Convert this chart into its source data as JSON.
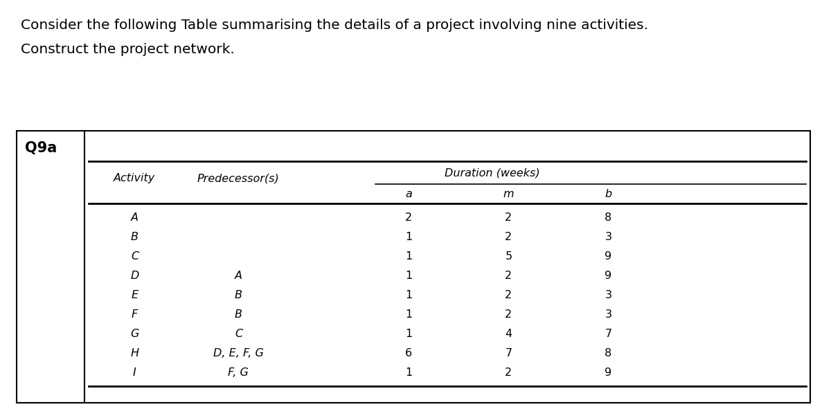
{
  "title_line1": "Consider the following Table summarising the details of a project involving nine activities.",
  "title_line2": "Construct the project network.",
  "label": "Q9a",
  "header_col1": "Activity",
  "header_col2": "Predecessor(s)",
  "header_col3": "Duration (weeks)",
  "subheader_a": "a",
  "subheader_m": "m",
  "subheader_b": "b",
  "activities": [
    "A",
    "B",
    "C",
    "D",
    "E",
    "F",
    "G",
    "H",
    "I"
  ],
  "predecessors": [
    "",
    "",
    "",
    "A",
    "B",
    "B",
    "C",
    "D, E, F, G",
    "F, G"
  ],
  "a_values": [
    2,
    1,
    1,
    1,
    1,
    1,
    1,
    6,
    1
  ],
  "m_values": [
    2,
    2,
    5,
    2,
    2,
    2,
    4,
    7,
    2
  ],
  "b_values": [
    8,
    3,
    9,
    9,
    3,
    3,
    7,
    8,
    9
  ],
  "bg_color": "#ffffff",
  "text_color": "#000000",
  "title_fontsize": 14.5,
  "table_fontsize": 11.5,
  "label_fontsize": 15
}
